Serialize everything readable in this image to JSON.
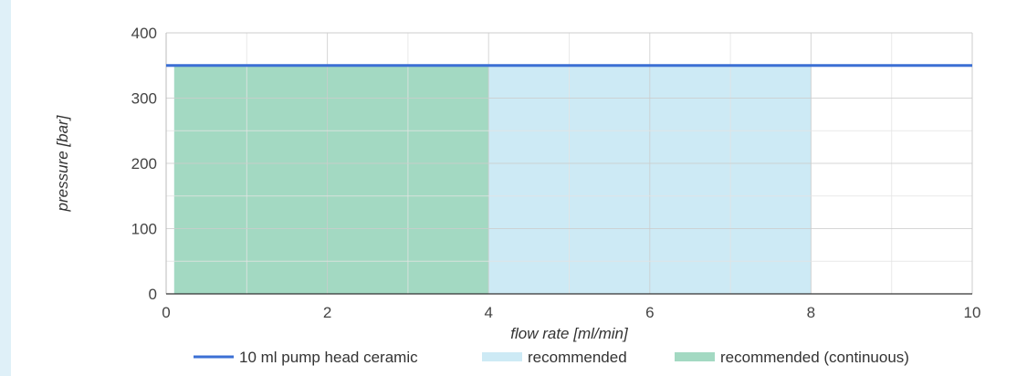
{
  "chart_data": {
    "type": "area",
    "xlabel": "flow rate [ml/min]",
    "ylabel": "pressure [bar]",
    "xlim": [
      0,
      10
    ],
    "ylim": [
      0,
      400
    ],
    "x_ticks": [
      "0",
      "2",
      "4",
      "6",
      "8",
      "10"
    ],
    "y_ticks": [
      "0",
      "100",
      "200",
      "300",
      "400"
    ],
    "grid": true,
    "legend_position": "bottom",
    "series": [
      {
        "name": "10 ml pump head ceramic",
        "kind": "line",
        "color": "#3b6fd4",
        "x": [
          0,
          10
        ],
        "y": [
          350,
          350
        ]
      },
      {
        "name": "recommended",
        "kind": "band",
        "color": "#cdeaf5",
        "x_range": [
          0.1,
          8
        ],
        "y_max": 350
      },
      {
        "name": "recommended (continuous)",
        "kind": "band",
        "color": "#a3d9c2",
        "x_range": [
          0.1,
          4
        ],
        "y_max": 350
      }
    ]
  }
}
